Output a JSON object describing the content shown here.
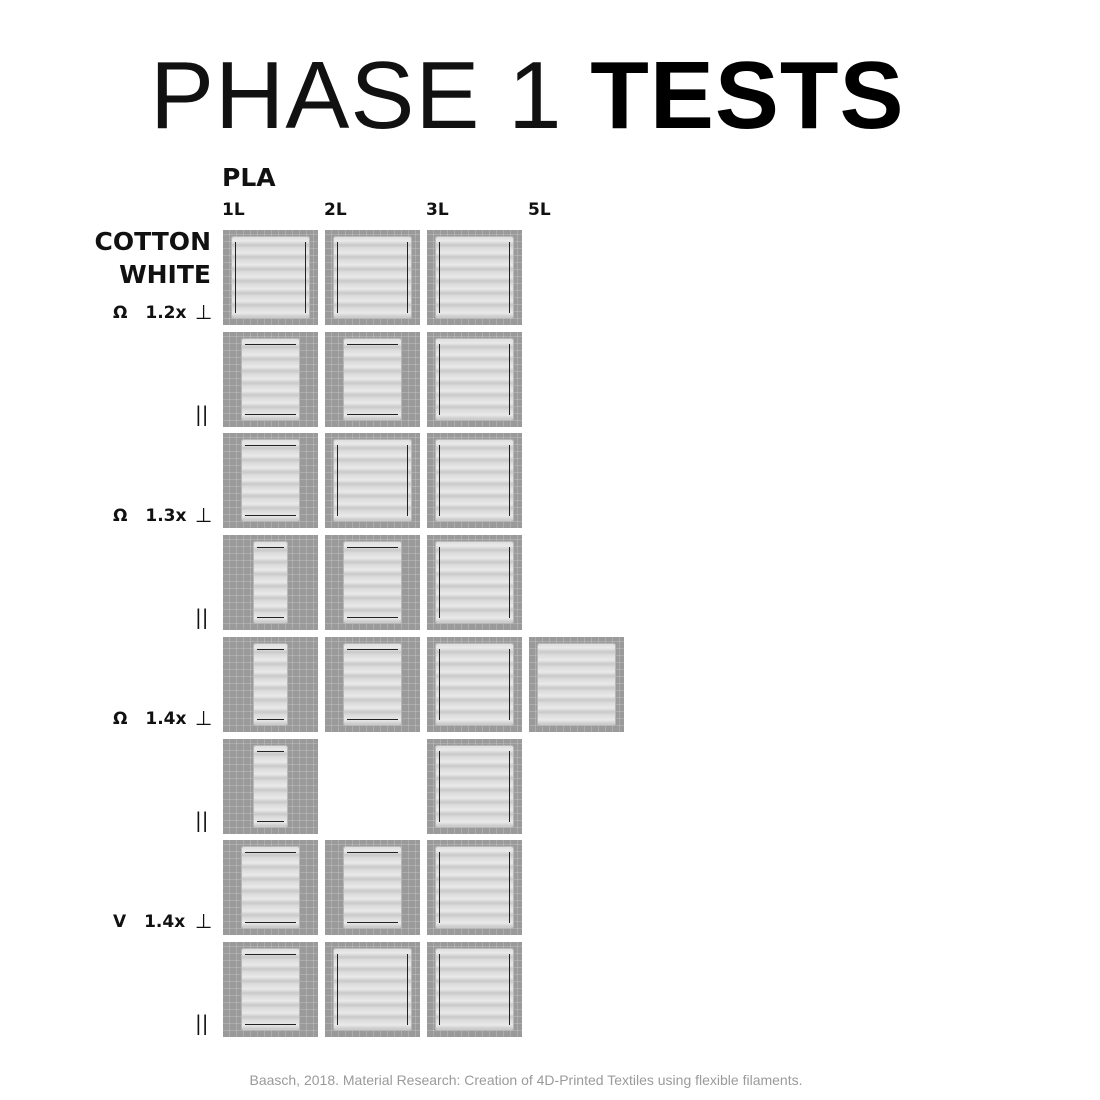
{
  "title": {
    "light": "PHASE 1 ",
    "bold": "TESTS"
  },
  "material": "PLA",
  "columns": [
    "1L",
    "2L",
    "3L",
    "5L"
  ],
  "fabric": {
    "line1": "COTTON",
    "line2": "WHITE"
  },
  "groups": [
    {
      "pattern": "Ω",
      "scale": "1.2x",
      "perpendicular": "⊥",
      "parallel": "||"
    },
    {
      "pattern": "Ω",
      "scale": "1.3x",
      "perpendicular": "⊥",
      "parallel": "||"
    },
    {
      "pattern": "Ω",
      "scale": "1.4x",
      "perpendicular": "⊥",
      "parallel": "||"
    },
    {
      "pattern": "V",
      "scale": "1.4x",
      "perpendicular": "⊥",
      "parallel": "||"
    }
  ],
  "citation": "Baasch, 2018. Material Research: Creation of 4D-Printed Textiles using flexible filaments."
}
